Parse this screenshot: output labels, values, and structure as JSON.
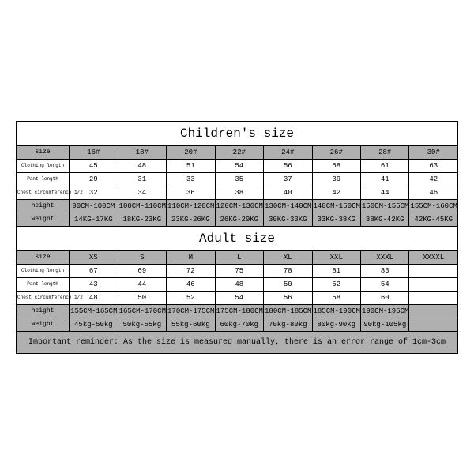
{
  "children_title": "Children's size",
  "adult_title": "Adult size",
  "row_labels": {
    "size": "size",
    "clothing_length": "Clothing length",
    "pant_length": "Pant length",
    "chest": "Chest circumference 1/2",
    "height": "height",
    "weight": "weight"
  },
  "children": {
    "sizes": [
      "16#",
      "18#",
      "20#",
      "22#",
      "24#",
      "26#",
      "28#",
      "30#"
    ],
    "clothing": [
      "45",
      "48",
      "51",
      "54",
      "56",
      "58",
      "61",
      "63"
    ],
    "pant": [
      "29",
      "31",
      "33",
      "35",
      "37",
      "39",
      "41",
      "42"
    ],
    "chest": [
      "32",
      "34",
      "36",
      "38",
      "40",
      "42",
      "44",
      "46"
    ],
    "height": [
      "90CM-100CM",
      "100CM-110CM",
      "110CM-120CM",
      "120CM-130CM",
      "130CM-140CM",
      "140CM-150CM",
      "150CM-155CM",
      "155CM-160CM"
    ],
    "weight": [
      "14KG-17KG",
      "18KG-23KG",
      "23KG-26KG",
      "26KG-29KG",
      "30KG-33KG",
      "33KG-38KG",
      "38KG-42KG",
      "42KG-45KG"
    ]
  },
  "adult": {
    "sizes": [
      "XS",
      "S",
      "M",
      "L",
      "XL",
      "XXL",
      "XXXL",
      "XXXXL"
    ],
    "clothing": [
      "67",
      "69",
      "72",
      "75",
      "78",
      "81",
      "83",
      ""
    ],
    "pant": [
      "43",
      "44",
      "46",
      "48",
      "50",
      "52",
      "54",
      ""
    ],
    "chest": [
      "48",
      "50",
      "52",
      "54",
      "56",
      "58",
      "60",
      ""
    ],
    "height": [
      "155CM-165CM",
      "165CM-170CM",
      "170CM-175CM",
      "175CM-180CM",
      "180CM-185CM",
      "185CM-190CM",
      "190CM-195CM",
      ""
    ],
    "weight": [
      "45kg-50kg",
      "50kg-55kg",
      "55kg-60kg",
      "60kg-70kg",
      "70kg-80kg",
      "80kg-90kg",
      "90kg-105kg",
      ""
    ]
  },
  "reminder": "Important reminder: As the size is measured manually, there is an error range of 1cm-3cm",
  "colors": {
    "header_bg": "#b0b0b0",
    "border": "#000000",
    "bg": "#ffffff"
  }
}
